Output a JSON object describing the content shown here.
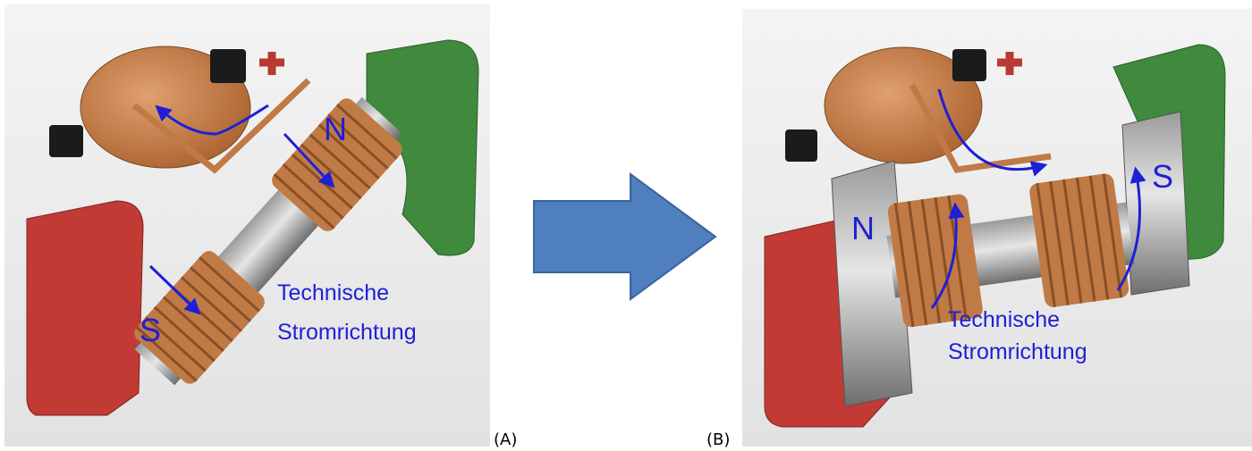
{
  "panels": [
    {
      "caption": "(A)",
      "north_label": "N",
      "south_label": "S",
      "annotation": [
        "Technische",
        "Stromrichtung"
      ]
    },
    {
      "caption": "(B)",
      "north_label": "N",
      "south_label": "S",
      "annotation": [
        "Technische",
        "Stromrichtung"
      ]
    }
  ]
}
